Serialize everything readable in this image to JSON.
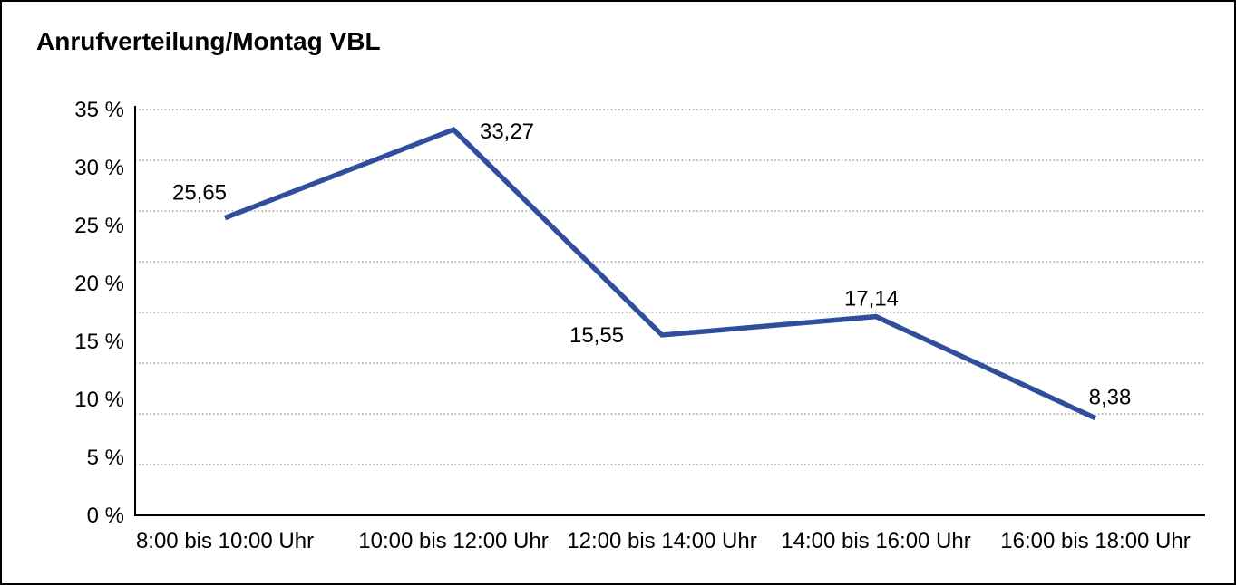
{
  "title": "Anrufverteilung/Montag VBL",
  "chart_data": {
    "type": "line",
    "title": "Anrufverteilung/Montag VBL",
    "categories": [
      "8:00 bis 10:00 Uhr",
      "10:00 bis 12:00 Uhr",
      "12:00 bis 14:00 Uhr",
      "14:00 bis 16:00 Uhr",
      "16:00 bis 18:00 Uhr"
    ],
    "values": [
      25.65,
      33.27,
      15.55,
      17.14,
      8.38
    ],
    "value_labels": [
      "25,65",
      "33,27",
      "15,55",
      "17,14",
      "8,38"
    ],
    "xlabel": "",
    "ylabel": "",
    "ylim": [
      0,
      35
    ],
    "ytick_labels": [
      "35 %",
      "30 %",
      "25 %",
      "20 %",
      "15 %",
      "10 %",
      "5 %",
      "0 %"
    ],
    "grid": "horizontal-dotted",
    "legend_position": "none",
    "unit": "%"
  },
  "colors": {
    "line": "#2F4F9D",
    "grid": "#888888",
    "axis": "#000000",
    "text": "#000000",
    "background": "#ffffff",
    "border": "#000000"
  }
}
